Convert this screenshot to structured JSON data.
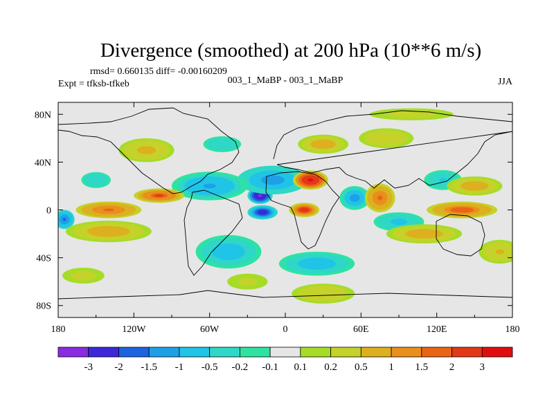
{
  "chart_data": {
    "type": "heatmap",
    "title": "Divergence (smoothed) at 200 hPa (10**6 m/s)",
    "stats_line": "rmsd= 0.660135 diff= -0.00160209",
    "left_label": "Expt = tfksb-tfkeb",
    "center_label": "003_1_MaBP - 003_1_MaBP",
    "right_label": "JJA",
    "x_ticks": [
      {
        "value": -180,
        "label": "180"
      },
      {
        "value": -120,
        "label": "120W"
      },
      {
        "value": -60,
        "label": "60W"
      },
      {
        "value": 0,
        "label": "0"
      },
      {
        "value": 60,
        "label": "60E"
      },
      {
        "value": 120,
        "label": "120E"
      },
      {
        "value": 180,
        "label": "180"
      }
    ],
    "y_ticks": [
      {
        "value": 80,
        "label": "80N"
      },
      {
        "value": 40,
        "label": "40N"
      },
      {
        "value": 0,
        "label": "0"
      },
      {
        "value": -40,
        "label": "40S"
      },
      {
        "value": -80,
        "label": "80S"
      }
    ],
    "xlim": [
      -180,
      180
    ],
    "ylim": [
      -90,
      90
    ],
    "contour_levels": [
      "-3",
      "-2",
      "-1.5",
      "-1",
      "-0.5",
      "-0.2",
      "-0.1",
      "0.1",
      "0.2",
      "0.5",
      "1",
      "1.5",
      "2",
      "3"
    ],
    "colors": [
      "#8a2be2",
      "#3c28d8",
      "#1c63e0",
      "#1ea0e6",
      "#20c4e6",
      "#2ed7c6",
      "#2ee3a2",
      "#e6e6e6",
      "#a6dc28",
      "#c4d22a",
      "#dcb01e",
      "#e88f1c",
      "#ea6416",
      "#e23818",
      "#e00e0e"
    ],
    "features": [
      {
        "lon": -20,
        "lat": 12,
        "value": -3.2,
        "rx": 10,
        "ry": 7
      },
      {
        "lon": -18,
        "lat": -2,
        "value": -3.0,
        "rx": 12,
        "ry": 6
      },
      {
        "lon": -10,
        "lat": 25,
        "value": -1.5,
        "rx": 28,
        "ry": 12
      },
      {
        "lon": -60,
        "lat": 20,
        "value": -1.2,
        "rx": 30,
        "ry": 12
      },
      {
        "lon": -45,
        "lat": -35,
        "value": -0.8,
        "rx": 26,
        "ry": 14
      },
      {
        "lon": 25,
        "lat": -45,
        "value": -0.9,
        "rx": 30,
        "ry": 10
      },
      {
        "lon": 55,
        "lat": 10,
        "value": -1.3,
        "rx": 12,
        "ry": 10
      },
      {
        "lon": 90,
        "lat": -10,
        "value": -0.7,
        "rx": 20,
        "ry": 8
      },
      {
        "lon": -175,
        "lat": -8,
        "value": -1.6,
        "rx": 8,
        "ry": 8
      },
      {
        "lon": -150,
        "lat": 25,
        "value": -0.5,
        "rx": 14,
        "ry": 8
      },
      {
        "lon": 125,
        "lat": 25,
        "value": -0.6,
        "rx": 18,
        "ry": 10
      },
      {
        "lon": 20,
        "lat": 25,
        "value": 3.2,
        "rx": 14,
        "ry": 8
      },
      {
        "lon": 15,
        "lat": 0,
        "value": 2.5,
        "rx": 12,
        "ry": 6
      },
      {
        "lon": -100,
        "lat": 12,
        "value": 2.2,
        "rx": 20,
        "ry": 6
      },
      {
        "lon": -140,
        "lat": 0,
        "value": 1.8,
        "rx": 26,
        "ry": 7
      },
      {
        "lon": -140,
        "lat": -18,
        "value": 0.9,
        "rx": 34,
        "ry": 9
      },
      {
        "lon": 75,
        "lat": 10,
        "value": 1.8,
        "rx": 12,
        "ry": 12
      },
      {
        "lon": 140,
        "lat": 0,
        "value": 1.9,
        "rx": 28,
        "ry": 7
      },
      {
        "lon": 150,
        "lat": 20,
        "value": 0.8,
        "rx": 22,
        "ry": 8
      },
      {
        "lon": 110,
        "lat": -20,
        "value": 1.0,
        "rx": 30,
        "ry": 8
      },
      {
        "lon": 170,
        "lat": -35,
        "value": 0.6,
        "rx": 20,
        "ry": 12
      },
      {
        "lon": -110,
        "lat": 50,
        "value": 0.7,
        "rx": 22,
        "ry": 10
      },
      {
        "lon": 30,
        "lat": 55,
        "value": 0.8,
        "rx": 20,
        "ry": 8
      },
      {
        "lon": 80,
        "lat": 60,
        "value": 0.5,
        "rx": 26,
        "ry": 10
      },
      {
        "lon": -50,
        "lat": 55,
        "value": -0.5,
        "rx": 18,
        "ry": 8
      },
      {
        "lon": 100,
        "lat": 80,
        "value": 0.4,
        "rx": 40,
        "ry": 6
      },
      {
        "lon": 30,
        "lat": -70,
        "value": 0.5,
        "rx": 30,
        "ry": 10
      },
      {
        "lon": -160,
        "lat": -55,
        "value": 0.4,
        "rx": 20,
        "ry": 8
      },
      {
        "lon": -30,
        "lat": -60,
        "value": 0.3,
        "rx": 24,
        "ry": 10
      }
    ]
  }
}
